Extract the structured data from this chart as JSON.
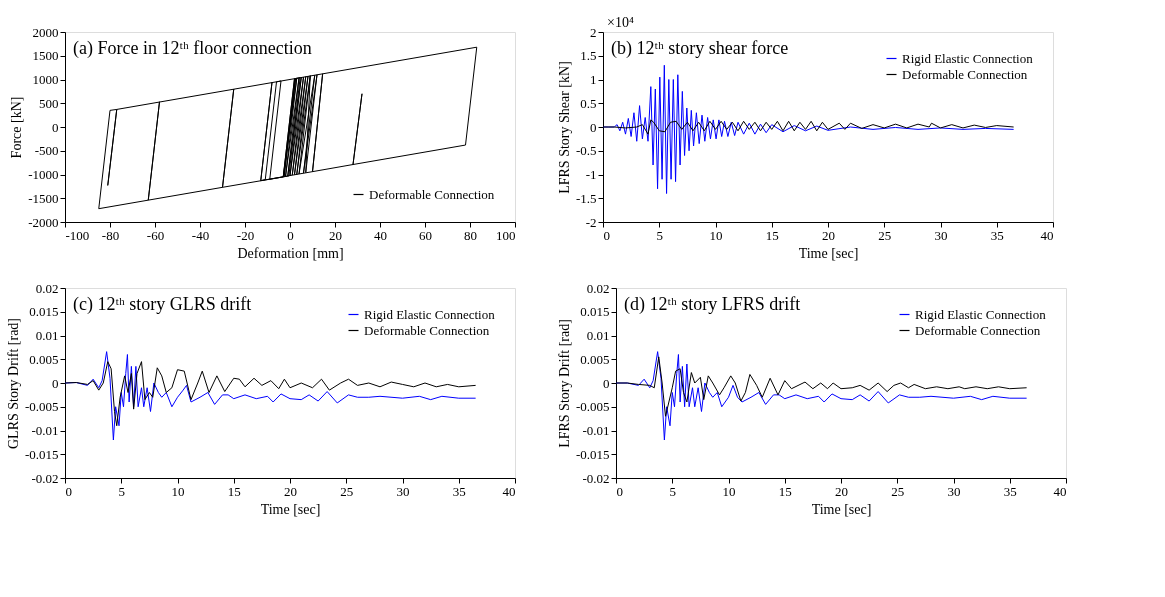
{
  "chart_data": [
    {
      "type": "line",
      "title": "(a) Force in 12ᵗʰ floor connection",
      "xlabel": "Deformation [mm]",
      "ylabel": "Force [kN]",
      "xlim": [
        -100,
        100
      ],
      "xticks": [
        -100,
        -80,
        -60,
        -40,
        -20,
        0,
        20,
        40,
        60,
        80,
        100
      ],
      "ylim": [
        -2000,
        2000
      ],
      "yticks": [
        -2000,
        -1500,
        -1000,
        -500,
        0,
        500,
        1000,
        1500,
        2000
      ],
      "grid": false,
      "legend": "bottom right",
      "line_style": "solid",
      "series": [
        {
          "name": "Deformable Connection",
          "color": "#000000",
          "x": [
            0,
            2.4,
            -2.6,
            2.4,
            4.5,
            -0.5,
            -30,
            -25,
            -30,
            -63,
            -58,
            -63,
            -85,
            -80,
            -77,
            -81,
            -77,
            83,
            78,
            28,
            32,
            28,
            10,
            14.5,
            10,
            -13,
            -8,
            -13,
            -11,
            -6,
            -4,
            -9,
            -3,
            2,
            -3,
            3,
            -2,
            4,
            -1,
            5,
            0,
            6,
            1,
            7,
            2,
            8,
            3,
            9,
            4,
            11,
            6,
            12,
            7,
            9
          ],
          "values": [
            0,
            1020,
            -1040,
            1020,
            1040,
            -1030,
            -1270,
            800,
            -1270,
            -1540,
            530,
            -1540,
            -1720,
            350,
            370,
            -1230,
            370,
            1680,
            -380,
            -790,
            700,
            -790,
            -940,
            1120,
            -940,
            -1130,
            940,
            -1130,
            -1110,
            950,
            970,
            -1100,
            -1050,
            1020,
            -1050,
            1030,
            -1040,
            1030,
            -1030,
            1040,
            -1020,
            1050,
            -1010,
            1060,
            -1000,
            1070,
            -1000,
            1080,
            -990,
            1090,
            -970,
            1100,
            -960,
            1080
          ]
        }
      ]
    },
    {
      "type": "line",
      "title": "(b) 12ᵗʰ story shear force",
      "xlabel": "Time [sec]",
      "ylabel": "LFRS Story Shear [kN]",
      "annotations": [
        "×10⁴"
      ],
      "xlim": [
        0,
        40
      ],
      "xticks": [
        0,
        5,
        10,
        15,
        20,
        25,
        30,
        35,
        40
      ],
      "ylim": [
        -2,
        2
      ],
      "yticks": [
        -2,
        -1.5,
        -1,
        -0.5,
        0,
        0.5,
        1,
        1.5,
        2
      ],
      "grid": false,
      "legend": "top right",
      "line_style": "solid",
      "series": [
        {
          "name": "Rigid Elastic Connection",
          "color": "#0000ff",
          "x": [
            0,
            0.5,
            1,
            1.25,
            1.5,
            1.75,
            2,
            2.25,
            2.5,
            2.75,
            3,
            3.25,
            3.5,
            3.75,
            4,
            4.25,
            4.45,
            4.65,
            4.85,
            5.05,
            5.25,
            5.45,
            5.65,
            5.85,
            6.05,
            6.25,
            6.45,
            6.65,
            6.85,
            7.05,
            7.25,
            7.45,
            7.65,
            7.85,
            8.05,
            8.3,
            8.55,
            8.8,
            9.05,
            9.3,
            9.55,
            9.8,
            10.05,
            10.3,
            10.55,
            10.8,
            11.1,
            11.4,
            11.7,
            12,
            12.5,
            13,
            13.5,
            14,
            14.5,
            15,
            16,
            17,
            18,
            19,
            20,
            22,
            24,
            26,
            28,
            30,
            32,
            34,
            36.5
          ],
          "values": [
            0,
            0,
            0,
            0.05,
            -0.08,
            0.1,
            -0.15,
            0.18,
            -0.2,
            0.3,
            -0.3,
            0.45,
            -0.25,
            0.2,
            -0.3,
            0.85,
            -0.8,
            0.8,
            -1.3,
            1.05,
            -1.1,
            1.3,
            -1.4,
            1.0,
            -1.1,
            1.0,
            -1.15,
            1.1,
            -0.8,
            0.75,
            -0.6,
            0.4,
            -0.5,
            0.35,
            -0.4,
            0.3,
            -0.35,
            0.25,
            -0.3,
            0.2,
            -0.25,
            0.15,
            -0.25,
            0.15,
            -0.2,
            0.12,
            -0.2,
            0.1,
            -0.18,
            0.1,
            -0.15,
            0.08,
            -0.15,
            0.06,
            -0.12,
            0.05,
            -0.1,
            0.03,
            -0.08,
            0.02,
            -0.07,
            0,
            -0.05,
            -0.01,
            -0.05,
            -0.02,
            -0.05,
            -0.03,
            -0.05
          ]
        },
        {
          "name": "Deformable Connection",
          "color": "#000000",
          "x": [
            0,
            1,
            2,
            3,
            3.5,
            4,
            4.25,
            4.5,
            5,
            5.5,
            6,
            6.5,
            7,
            7.5,
            8,
            8.5,
            9,
            9.5,
            10,
            10.5,
            11,
            11.5,
            12,
            12.5,
            13,
            13.5,
            14,
            14.5,
            15,
            15.5,
            16,
            16.5,
            17,
            17.5,
            18,
            18.5,
            19,
            19.5,
            20,
            21,
            21.5,
            22,
            23,
            24,
            25,
            26,
            27,
            28,
            29,
            29.2,
            30,
            31,
            32,
            33,
            34,
            35,
            36.5
          ],
          "values": [
            0,
            0,
            -0.02,
            0,
            0.05,
            -0.15,
            0.15,
            0.1,
            -0.08,
            -0.1,
            0.1,
            0.12,
            -0.05,
            0.1,
            -0.08,
            0.1,
            -0.08,
            0.12,
            -0.05,
            0.12,
            -0.05,
            0.1,
            -0.08,
            0.12,
            -0.05,
            0.1,
            -0.08,
            0.1,
            -0.05,
            0.12,
            -0.08,
            0.12,
            -0.08,
            0.1,
            -0.05,
            0.12,
            -0.08,
            0.1,
            -0.05,
            0.08,
            -0.05,
            0.08,
            -0.03,
            0.05,
            -0.02,
            0.06,
            -0.02,
            0.06,
            0,
            0.08,
            -0.02,
            0.05,
            -0.02,
            0.04,
            -0.01,
            0.03,
            0
          ]
        }
      ]
    },
    {
      "type": "line",
      "title": "(c) 12ᵗʰ story GLRS drift",
      "xlabel": "Time [sec]",
      "ylabel": "GLRS Story Drift [rad]",
      "xlim": [
        0,
        40
      ],
      "xticks": [
        0,
        5,
        10,
        15,
        20,
        25,
        30,
        35,
        40
      ],
      "ylim": [
        -0.02,
        0.02
      ],
      "yticks": [
        -0.02,
        -0.015,
        -0.01,
        -0.005,
        0,
        0.005,
        0.01,
        0.015,
        0.02
      ],
      "grid": false,
      "legend": "top right",
      "line_style": "solid",
      "series": [
        {
          "name": "Rigid Elastic Connection",
          "color": "#0000ff",
          "x": [
            0,
            1,
            2,
            2.5,
            3,
            3.3,
            3.7,
            4.0,
            4.3,
            4.5,
            4.8,
            5.0,
            5.2,
            5.4,
            5.55,
            5.7,
            5.9,
            6.1,
            6.3,
            6.5,
            6.8,
            7.0,
            7.3,
            7.6,
            7.9,
            8.3,
            8.6,
            9.0,
            9.5,
            10,
            10.5,
            10.8,
            11.2,
            12,
            12.7,
            13.3,
            14,
            14.5,
            15,
            16,
            17,
            18,
            18.5,
            19.2,
            20,
            21,
            21.7,
            22.5,
            23.3,
            24.2,
            25.2,
            26,
            27,
            28,
            30,
            31.5,
            32.5,
            33.5,
            35,
            36.5
          ],
          "values": [
            0,
            0.0001,
            -0.0005,
            0.0008,
            -0.001,
            0.0005,
            0.0066,
            0.001,
            -0.012,
            -0.005,
            -0.009,
            -0.002,
            -0.005,
            0.002,
            0.006,
            -0.004,
            0.0035,
            -0.005,
            0.0035,
            -0.005,
            -0.001,
            -0.005,
            -0.001,
            -0.006,
            0,
            -0.002,
            -0.003,
            -0.002,
            -0.005,
            -0.003,
            -0.0015,
            -0.0005,
            -0.004,
            -0.003,
            -0.002,
            -0.0045,
            -0.0025,
            -0.0025,
            -0.0033,
            -0.0025,
            -0.0033,
            -0.0028,
            -0.004,
            -0.0023,
            -0.0033,
            -0.0035,
            -0.0025,
            -0.0038,
            -0.0018,
            -0.0042,
            -0.0025,
            -0.003,
            -0.003,
            -0.0028,
            -0.0032,
            -0.0028,
            -0.0035,
            -0.0028,
            -0.0032,
            -0.0032
          ]
        },
        {
          "name": "Deformable Connection",
          "color": "#000000",
          "x": [
            0,
            1,
            2,
            2.5,
            3,
            3.4,
            3.8,
            4.1,
            4.4,
            4.6,
            4.9,
            5.3,
            5.6,
            5.9,
            6.1,
            6.4,
            6.8,
            7.1,
            7.5,
            7.8,
            8.2,
            8.6,
            9.0,
            9.5,
            10,
            10.6,
            11.2,
            11.8,
            12.2,
            12.8,
            13.5,
            14.2,
            15,
            15.5,
            16,
            16.8,
            17.5,
            18.3,
            19,
            19.5,
            20,
            21,
            22,
            22.8,
            23.5,
            24.5,
            25.2,
            26,
            27,
            28,
            29,
            30,
            31,
            32,
            33,
            34,
            35,
            36.5
          ],
          "values": [
            0,
            0.0001,
            -0.0003,
            0.0005,
            -0.0015,
            0,
            0.0045,
            0.003,
            -0.006,
            -0.009,
            -0.003,
            0.0015,
            -0.002,
            0.002,
            -0.0055,
            0.002,
            0.0045,
            -0.0035,
            -0.002,
            -0.003,
            0.0032,
            0.0015,
            -0.002,
            -0.001,
            0.0028,
            0.0025,
            -0.0035,
            0,
            0.0025,
            -0.002,
            0.0015,
            -0.0018,
            0.001,
            0.0008,
            -0.0008,
            0.001,
            -0.0005,
            0.0005,
            -0.0012,
            0.0008,
            -0.001,
            0,
            -0.001,
            0.0008,
            -0.0015,
            0,
            0.0008,
            -0.0005,
            0,
            -0.0008,
            0.0002,
            -0.0003,
            -0.0008,
            0,
            -0.0008,
            -0.0003,
            -0.0008,
            -0.0005
          ]
        }
      ]
    },
    {
      "type": "line",
      "title": "(d) 12ᵗʰ story LFRS drift",
      "xlabel": "Time [sec]",
      "ylabel": "LFRS Story Drift [rad]",
      "xlim": [
        0,
        40
      ],
      "xticks": [
        0,
        5,
        10,
        15,
        20,
        25,
        30,
        35,
        40
      ],
      "ylim": [
        -0.02,
        0.02
      ],
      "yticks": [
        -0.02,
        -0.015,
        -0.01,
        -0.005,
        0,
        0.005,
        0.01,
        0.015,
        0.02
      ],
      "grid": false,
      "legend": "top right",
      "line_style": "solid",
      "series": [
        {
          "name": "Rigid Elastic Connection",
          "color": "#0000ff",
          "x": [
            0,
            1,
            2,
            2.5,
            3,
            3.3,
            3.7,
            4.0,
            4.3,
            4.5,
            4.8,
            5.0,
            5.2,
            5.4,
            5.55,
            5.7,
            5.9,
            6.1,
            6.3,
            6.5,
            6.8,
            7.0,
            7.3,
            7.6,
            7.9,
            8.3,
            8.6,
            9.0,
            9.4,
            10,
            10.4,
            10.8,
            11.2,
            12,
            12.7,
            13.3,
            14,
            14.5,
            15,
            16,
            17,
            18,
            18.5,
            19.2,
            20,
            21,
            21.7,
            22.5,
            23.3,
            24.2,
            25.2,
            26,
            27,
            28,
            30,
            31.5,
            32.5,
            33.5,
            35,
            36.5
          ],
          "values": [
            0,
            0,
            -0.0005,
            0.0008,
            -0.001,
            0.0005,
            0.0066,
            0.001,
            -0.012,
            -0.005,
            -0.009,
            -0.002,
            -0.005,
            0.002,
            0.006,
            -0.004,
            0.0035,
            -0.005,
            0.004,
            -0.005,
            -0.001,
            -0.005,
            -0.001,
            -0.006,
            0,
            -0.002,
            -0.003,
            -0.002,
            -0.005,
            -0.003,
            -0.0005,
            -0.003,
            -0.004,
            -0.003,
            -0.002,
            -0.0045,
            -0.0025,
            -0.0025,
            -0.0033,
            -0.0025,
            -0.0033,
            -0.0028,
            -0.004,
            -0.0023,
            -0.0033,
            -0.0035,
            -0.0025,
            -0.0038,
            -0.0018,
            -0.0042,
            -0.0025,
            -0.003,
            -0.003,
            -0.0028,
            -0.0032,
            -0.0028,
            -0.0035,
            -0.0028,
            -0.0032,
            -0.0032
          ]
        },
        {
          "name": "Deformable Connection",
          "color": "#000000",
          "x": [
            0,
            1,
            2,
            3,
            3.4,
            3.8,
            4.1,
            4.4,
            4.7,
            5.0,
            5.3,
            5.7,
            6.0,
            6.3,
            6.7,
            7.0,
            7.5,
            7.8,
            8.2,
            8.6,
            9.2,
            9.6,
            10.2,
            10.6,
            11.1,
            11.5,
            11.9,
            12.5,
            13,
            13.7,
            14.4,
            15,
            15.6,
            16.8,
            17.5,
            18.2,
            18.8,
            19.3,
            20,
            21,
            21.7,
            22.5,
            23.3,
            24.1,
            24.7,
            25.3,
            26,
            26.5,
            27.5,
            28.5,
            29.5,
            30.5,
            31,
            32,
            33,
            34,
            35,
            36.5
          ],
          "values": [
            0,
            0,
            -0.0003,
            -0.0005,
            -0.001,
            0.0055,
            0,
            -0.007,
            -0.004,
            -0.001,
            0.0025,
            0.003,
            -0.002,
            -0.004,
            0.0022,
            0,
            0.0012,
            -0.0035,
            0.0015,
            0,
            -0.0025,
            -0.001,
            0.0015,
            0,
            -0.0038,
            -0.002,
            0.0018,
            -0.0005,
            -0.003,
            0.001,
            -0.0025,
            0.0005,
            -0.0012,
            0.0002,
            -0.0012,
            0,
            -0.0012,
            0,
            -0.0012,
            -0.001,
            -0.0005,
            -0.0015,
            0,
            -0.0018,
            -0.0005,
            0,
            -0.001,
            -0.0003,
            -0.0012,
            -0.0008,
            -0.0012,
            -0.0008,
            -0.0012,
            -0.0008,
            -0.0012,
            -0.0008,
            -0.0012,
            -0.001
          ]
        }
      ]
    }
  ]
}
